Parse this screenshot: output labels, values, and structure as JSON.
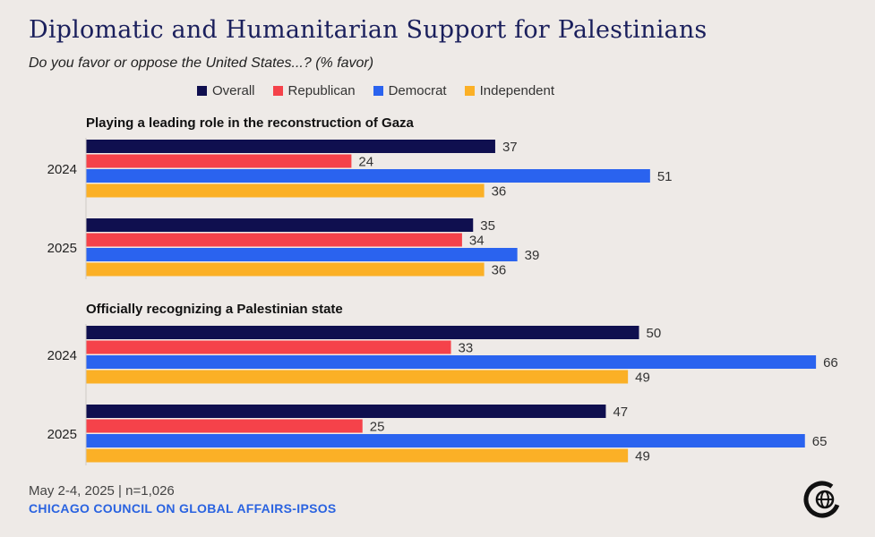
{
  "chart_data": {
    "type": "bar",
    "orientation": "horizontal",
    "title": "Diplomatic and Humanitarian Support for Palestinians",
    "subtitle": "Do you favor or oppose the United States...? (% favor)",
    "series_names": [
      "Overall",
      "Republican",
      "Democrat",
      "Independent"
    ],
    "colors": {
      "Overall": "#0f0f4f",
      "Republican": "#f5424a",
      "Democrat": "#2a63ef",
      "Independent": "#fbb026"
    },
    "groups": [
      {
        "label": "Playing a leading role in the reconstruction of Gaza",
        "years": [
          {
            "year": "2024",
            "values": [
              37,
              24,
              51,
              36
            ]
          },
          {
            "year": "2025",
            "values": [
              35,
              34,
              39,
              36
            ]
          }
        ]
      },
      {
        "label": "Officially recognizing a Palestinian state",
        "years": [
          {
            "year": "2024",
            "values": [
              50,
              33,
              66,
              49
            ]
          },
          {
            "year": "2025",
            "values": [
              47,
              25,
              65,
              49
            ]
          }
        ]
      }
    ],
    "xlim": [
      0,
      70
    ]
  },
  "footer": {
    "date": "May 2-4, 2025 | n=1,026",
    "source": "CHICAGO COUNCIL ON GLOBAL AFFAIRS-IPSOS"
  },
  "logo_icon": "chicago-council-logo-icon"
}
